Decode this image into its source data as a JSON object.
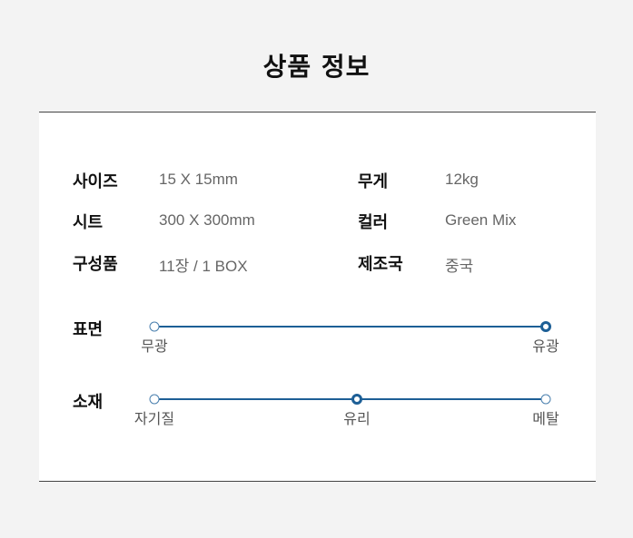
{
  "title": "상품 정보",
  "specs": [
    {
      "label": "사이즈",
      "value": "15 X 15mm"
    },
    {
      "label": "무게",
      "value": "12kg"
    },
    {
      "label": "시트",
      "value": "300 X 300mm"
    },
    {
      "label": "컬러",
      "value": "Green Mix"
    },
    {
      "label": "구성품",
      "value": "11장 / 1 BOX"
    },
    {
      "label": "제조국",
      "value": "중국"
    }
  ],
  "scales": [
    {
      "label": "표면",
      "options": [
        "무광",
        "유광"
      ],
      "selected": "유광"
    },
    {
      "label": "소재",
      "options": [
        "자기질",
        "유리",
        "메탈"
      ],
      "selected": "유리"
    }
  ],
  "colors": {
    "accent": "#1d5f96"
  }
}
